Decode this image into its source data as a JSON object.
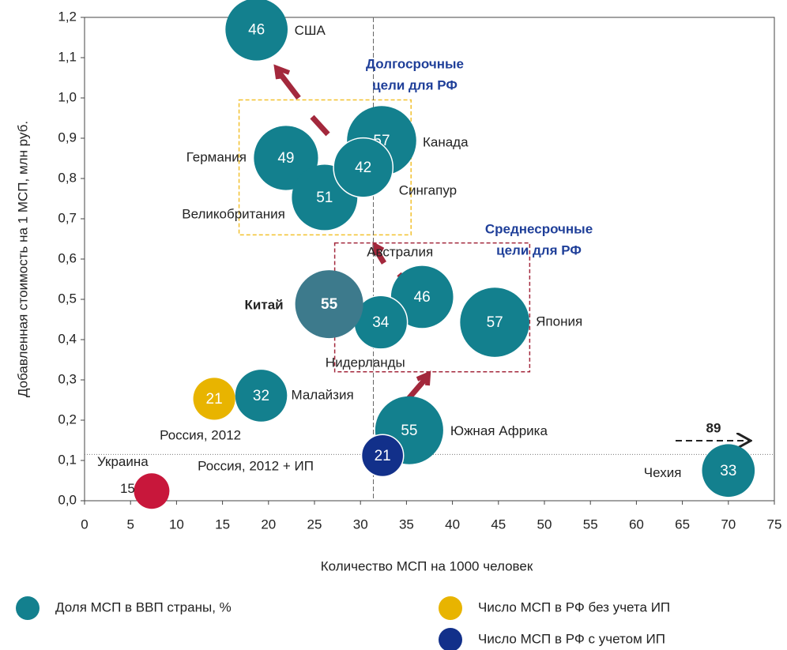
{
  "chart_data": {
    "type": "bubble",
    "xlabel": "Количество МСП на 1000 человек",
    "ylabel": "Добавленная стоимость на 1 МСП, млн руб.",
    "xlim": [
      0,
      75
    ],
    "ylim": [
      0,
      1.2
    ],
    "xticks": [
      0,
      5,
      10,
      15,
      20,
      25,
      30,
      35,
      40,
      45,
      50,
      55,
      60,
      65,
      70,
      75
    ],
    "yticks": [
      {
        "value": 0,
        "label": "0,0"
      },
      {
        "value": 0.1,
        "label": "0,1"
      },
      {
        "value": 0.2,
        "label": "0,2"
      },
      {
        "value": 0.3,
        "label": "0,3"
      },
      {
        "value": 0.4,
        "label": "0,4"
      },
      {
        "value": 0.5,
        "label": "0,5"
      },
      {
        "value": 0.6,
        "label": "0,6"
      },
      {
        "value": 0.7,
        "label": "0,7"
      },
      {
        "value": 0.8,
        "label": "0,8"
      },
      {
        "value": 0.9,
        "label": "0,9"
      },
      {
        "value": 1.0,
        "label": "1,0"
      },
      {
        "value": 1.1,
        "label": "1,1"
      },
      {
        "value": 1.2,
        "label": "1,2"
      }
    ],
    "reference_lines": {
      "x": 31.4,
      "y": 0.115
    },
    "regions": [
      {
        "label": [
          "Долгосрочные",
          "цели для РФ"
        ],
        "color": "#f2c12e",
        "xlim": [
          16.8,
          35.5
        ],
        "ylim": [
          0.66,
          0.995
        ]
      },
      {
        "label": [
          "Среднесрочные",
          "цели для РФ"
        ],
        "color": "#a3283c",
        "xlim": [
          27.2,
          48.4
        ],
        "ylim": [
          0.32,
          0.64
        ]
      }
    ],
    "offscale_value": 89,
    "series": [
      {
        "name": "Доля МСП в ВВП страны, %",
        "color": "#13808e",
        "labels": [
          "США",
          "Канада",
          "Германия",
          "Великобритания",
          "Сингапур",
          "Австралия",
          "Нидерланды",
          "Япония",
          "Китай",
          "Малайзия",
          "Южная Африка",
          "Чехия",
          "Украина"
        ],
        "x": [
          18.7,
          32.3,
          21.9,
          26.1,
          30.3,
          36.7,
          32.2,
          44.6,
          26.6,
          19.2,
          35.3,
          70.0,
          7.3
        ],
        "y": [
          1.17,
          0.894,
          0.851,
          0.753,
          0.827,
          0.506,
          0.443,
          0.443,
          0.488,
          0.261,
          0.175,
          0.075,
          0.024
        ],
        "sizes": [
          46,
          57,
          49,
          51,
          42,
          46,
          34,
          57,
          55,
          32,
          55,
          33,
          15
        ],
        "colors": [
          "#13808e",
          "#13808e",
          "#13808e",
          "#13808e",
          "#13808e",
          "#13808e",
          "#13808e",
          "#13808e",
          "#3d7a8c",
          "#13808e",
          "#13808e",
          "#13808e",
          "#c8173b"
        ]
      },
      {
        "name": "Число МСП в РФ без учета ИП",
        "color": "#e8b400",
        "labels": [
          "Россия, 2012"
        ],
        "x": [
          14.1
        ],
        "y": [
          0.253
        ],
        "sizes": [
          21
        ]
      },
      {
        "name": "Число МСП в РФ с учетом ИП",
        "color": "#12308a",
        "labels": [
          "Россия, 2012 + ИП"
        ],
        "x": [
          32.4
        ],
        "y": [
          0.112
        ],
        "sizes": [
          21
        ]
      }
    ]
  }
}
